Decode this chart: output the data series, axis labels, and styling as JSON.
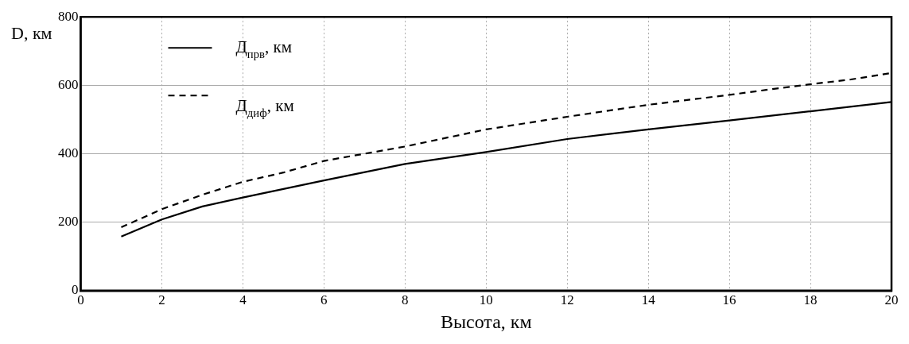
{
  "chart_data": {
    "type": "line",
    "xlabel": "Высота, км",
    "ylabel": "D, км",
    "x": [
      1,
      2,
      3,
      4,
      5,
      6,
      7,
      8,
      9,
      10,
      12,
      14,
      16,
      17,
      18,
      19,
      20
    ],
    "series": [
      {
        "name": "Д$_{прв}$, км",
        "color": "#000000",
        "line_style": "solid",
        "x": [
          1,
          2,
          3,
          4,
          6,
          8,
          10,
          12,
          14,
          16,
          18,
          20
        ],
        "values": [
          158,
          208,
          246,
          272,
          322,
          370,
          405,
          443,
          471,
          497,
          524,
          551
        ]
      },
      {
        "name": "Д$_{диф}$, км",
        "color": "#000000",
        "line_style": "dashed",
        "values": [
          185,
          238,
          280,
          318,
          345,
          379,
          400,
          421,
          446,
          471,
          508,
          543,
          572,
          588,
          603,
          617,
          636
        ]
      }
    ],
    "xlim": [
      0,
      20
    ],
    "xticks": [
      0,
      2,
      4,
      6,
      8,
      10,
      12,
      14,
      16,
      18,
      20
    ],
    "ylim": [
      0,
      800
    ],
    "yticks": [
      0,
      200,
      400,
      600,
      800
    ],
    "grid": true,
    "legend": "top left",
    "marker": "none"
  }
}
